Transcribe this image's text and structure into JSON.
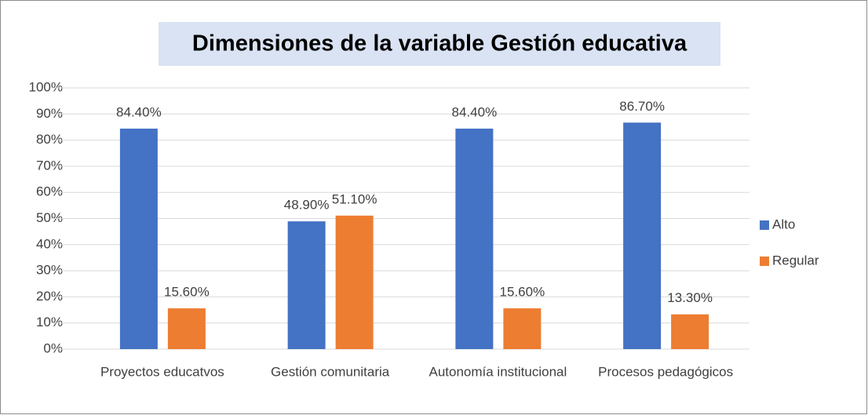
{
  "chart_data": {
    "type": "bar",
    "title": "Dimensiones de la variable Gestión educativa",
    "categories": [
      "Proyectos educatvos",
      "Gestión comunitaria",
      "Autonomía institucional",
      "Procesos pedagógicos"
    ],
    "series": [
      {
        "name": "Alto",
        "color": "#4472c4",
        "values": [
          84.4,
          48.9,
          84.4,
          86.7
        ],
        "value_labels": [
          "84.40%",
          "48.90%",
          "84.40%",
          "86.70%"
        ]
      },
      {
        "name": "Regular",
        "color": "#ed7d31",
        "values": [
          15.6,
          51.1,
          15.6,
          13.3
        ],
        "value_labels": [
          "15.60%",
          "51.10%",
          "15.60%",
          "13.30%"
        ]
      }
    ],
    "ylim": [
      0,
      100
    ],
    "yticks": [
      {
        "value": 0,
        "label": "0%"
      },
      {
        "value": 10,
        "label": "10%"
      },
      {
        "value": 20,
        "label": "20%"
      },
      {
        "value": 30,
        "label": "30%"
      },
      {
        "value": 40,
        "label": "40%"
      },
      {
        "value": 50,
        "label": "50%"
      },
      {
        "value": 60,
        "label": "60%"
      },
      {
        "value": 70,
        "label": "70%"
      },
      {
        "value": 80,
        "label": "80%"
      },
      {
        "value": 90,
        "label": "90%"
      },
      {
        "value": 100,
        "label": "100%"
      }
    ],
    "grid": true,
    "legend": "right"
  }
}
